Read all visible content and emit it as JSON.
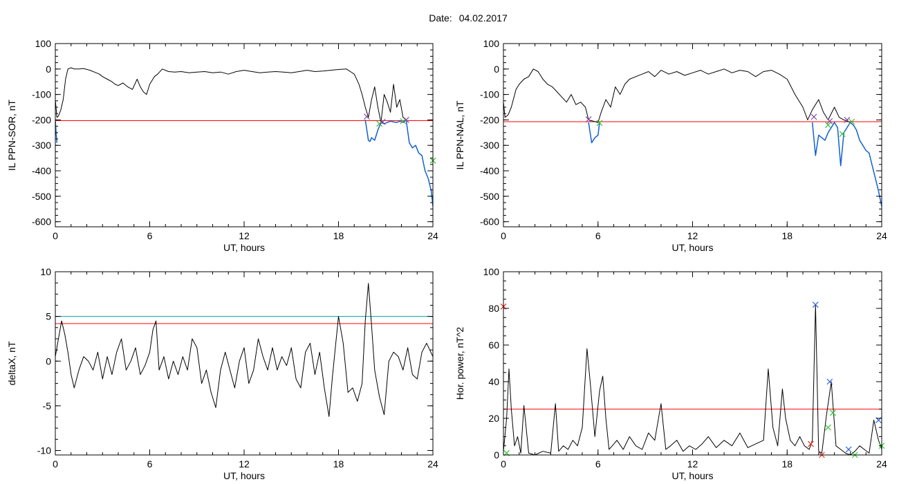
{
  "header": {
    "date_label": "Date:",
    "date_value": "04.02.2017"
  },
  "colors": {
    "trace": "#000000",
    "threshold_red": "#ff0000",
    "threshold_teal": "#00a0a0",
    "segment_blue": "#1060d0",
    "marker_purple": "#8040a0",
    "marker_green": "#30c030",
    "marker_blue": "#3060e0",
    "marker_red": "#e03020"
  },
  "chart_data": [
    {
      "type": "line",
      "xlabel": "UT, hours",
      "ylabel": "IL PPN-SOR, nT",
      "xlim": [
        0,
        24
      ],
      "ylim": [
        -620,
        100
      ],
      "xticks": [
        0,
        6,
        12,
        18,
        24
      ],
      "yticks": [
        100,
        0,
        -100,
        -200,
        -300,
        -400,
        -500,
        -600
      ],
      "threshold": {
        "value": -203,
        "color": "threshold_red"
      },
      "series": [
        {
          "color": "trace",
          "x": [
            0,
            0.1,
            0.2,
            0.35,
            0.5,
            0.65,
            0.8,
            1.0,
            1.2,
            1.5,
            1.8,
            2.2,
            2.6,
            2.8,
            3.0,
            3.3,
            3.6,
            3.8,
            4.0,
            4.3,
            4.6,
            4.9,
            5.2,
            5.4,
            5.6,
            5.8,
            6.0,
            6.3,
            6.5,
            6.8,
            7.2,
            7.6,
            8.0,
            8.5,
            9.0,
            9.5,
            10.0,
            10.5,
            11.0,
            11.5,
            12.0,
            12.5,
            13.0,
            13.5,
            14.0,
            14.5,
            15.0,
            15.5,
            16.0,
            16.5,
            17.0,
            17.5,
            18.0,
            18.5,
            19.0,
            19.3,
            19.5,
            19.7,
            19.9,
            20.1,
            20.3,
            20.5,
            20.7,
            20.9,
            21.1,
            21.3,
            21.5,
            21.7,
            21.9,
            22.1,
            22.3
          ],
          "y": [
            -120,
            -190,
            -185,
            -160,
            -120,
            -40,
            0,
            5,
            0,
            0,
            2,
            -5,
            -15,
            -20,
            -30,
            -40,
            -50,
            -60,
            -65,
            -55,
            -70,
            -80,
            -40,
            -70,
            -90,
            -100,
            -60,
            -30,
            -20,
            0,
            -10,
            -12,
            -10,
            -15,
            -12,
            -10,
            -15,
            -12,
            -20,
            -10,
            -5,
            -10,
            -15,
            -12,
            -10,
            -12,
            -15,
            -10,
            -5,
            -10,
            -8,
            -5,
            -2,
            0,
            -20,
            -60,
            -100,
            -150,
            -190,
            -120,
            -70,
            -150,
            -210,
            -100,
            -130,
            -170,
            -60,
            -150,
            -120,
            -190,
            -200
          ]
        },
        {
          "color": "segment_blue",
          "x": [
            0,
            0.05,
            0.1,
            19.7,
            19.8,
            19.9,
            20.0,
            20.1,
            20.3,
            20.5,
            20.7,
            20.9,
            21.1,
            21.3,
            21.5,
            21.7,
            21.9,
            22.1,
            22.3,
            22.5,
            22.7,
            22.9,
            23.1,
            23.3,
            23.5,
            23.7,
            23.9,
            24.0
          ],
          "y": [
            -200,
            -250,
            -290,
            -200,
            -240,
            -280,
            -285,
            -270,
            -280,
            -240,
            -210,
            -215,
            -210,
            -205,
            -208,
            -210,
            -205,
            -210,
            -200,
            -290,
            -310,
            -300,
            -330,
            -340,
            -400,
            -430,
            -480,
            -540
          ]
        }
      ],
      "markers": [
        {
          "x": 19.8,
          "y": -187,
          "color": "marker_purple"
        },
        {
          "x": 20.6,
          "y": -215,
          "color": "marker_green"
        },
        {
          "x": 20.8,
          "y": -208,
          "color": "marker_purple"
        },
        {
          "x": 22.1,
          "y": -205,
          "color": "marker_green"
        },
        {
          "x": 22.3,
          "y": -200,
          "color": "marker_purple"
        },
        {
          "x": 24.0,
          "y": -360,
          "color": "marker_green"
        }
      ]
    },
    {
      "type": "line",
      "xlabel": "UT, hours",
      "ylabel": "IL PPN-NAL, nT",
      "xlim": [
        0,
        24
      ],
      "ylim": [
        -620,
        100
      ],
      "xticks": [
        0,
        6,
        12,
        18,
        24
      ],
      "yticks": [
        100,
        0,
        -100,
        -200,
        -300,
        -400,
        -500,
        -600
      ],
      "threshold": {
        "value": -207,
        "color": "threshold_red"
      },
      "series": [
        {
          "color": "trace",
          "x": [
            0,
            0.1,
            0.3,
            0.5,
            0.8,
            1.0,
            1.3,
            1.6,
            1.9,
            2.2,
            2.5,
            2.8,
            3.1,
            3.4,
            3.7,
            4.0,
            4.3,
            4.6,
            4.9,
            5.2,
            5.4,
            6.0,
            6.2,
            6.5,
            6.8,
            7.1,
            7.4,
            7.7,
            8.0,
            8.4,
            8.8,
            9.2,
            9.6,
            10.0,
            10.5,
            11.0,
            11.5,
            12.0,
            12.5,
            13.0,
            13.5,
            14.0,
            14.5,
            15.0,
            15.5,
            16.0,
            16.5,
            17.0,
            17.5,
            18.0,
            18.5,
            19.0,
            19.3,
            19.6,
            20.0,
            20.3,
            20.6,
            21.0,
            21.3,
            21.6,
            22.0
          ],
          "y": [
            -130,
            -190,
            -180,
            -150,
            -80,
            -60,
            -40,
            -30,
            0,
            -10,
            -40,
            -60,
            -70,
            -90,
            -110,
            -130,
            -100,
            -140,
            -130,
            -150,
            -200,
            -210,
            -170,
            -120,
            -150,
            -70,
            -100,
            -60,
            -40,
            -30,
            -20,
            -10,
            -30,
            -5,
            -20,
            -10,
            -25,
            -15,
            -5,
            -20,
            -10,
            0,
            -15,
            -5,
            -10,
            -30,
            -10,
            -5,
            -20,
            -40,
            -100,
            -150,
            -200,
            -160,
            -120,
            -170,
            -200,
            -150,
            -190,
            -200,
            -210
          ]
        },
        {
          "color": "segment_blue",
          "x": [
            5.4,
            5.6,
            5.8,
            6.0,
            6.1,
            19.6,
            19.8,
            20.0,
            20.2,
            20.4,
            20.6,
            20.8,
            21.0,
            21.2,
            21.4,
            21.6,
            21.8,
            22.0,
            22.2,
            22.4,
            22.6,
            22.8,
            23.0,
            23.2,
            23.4,
            23.6,
            23.8,
            24.0
          ],
          "y": [
            -210,
            -290,
            -270,
            -260,
            -210,
            -210,
            -340,
            -260,
            -270,
            -280,
            -250,
            -230,
            -210,
            -230,
            -380,
            -250,
            -230,
            -210,
            -220,
            -240,
            -280,
            -300,
            -320,
            -330,
            -380,
            -430,
            -480,
            -540
          ]
        }
      ],
      "markers": [
        {
          "x": 5.4,
          "y": -198,
          "color": "marker_purple"
        },
        {
          "x": 6.1,
          "y": -212,
          "color": "marker_green"
        },
        {
          "x": 19.7,
          "y": -188,
          "color": "marker_purple"
        },
        {
          "x": 20.6,
          "y": -220,
          "color": "marker_green"
        },
        {
          "x": 20.7,
          "y": -205,
          "color": "marker_purple"
        },
        {
          "x": 21.5,
          "y": -255,
          "color": "marker_green"
        },
        {
          "x": 21.8,
          "y": -200,
          "color": "marker_purple"
        },
        {
          "x": 22.1,
          "y": -207,
          "color": "marker_green"
        }
      ]
    },
    {
      "type": "line",
      "xlabel": "UT, hours",
      "ylabel": "deltaX, nT",
      "xlim": [
        0,
        24
      ],
      "ylim": [
        -10.5,
        10
      ],
      "xticks": [
        0,
        6,
        12,
        18,
        24
      ],
      "yticks": [
        10,
        5,
        0,
        -5,
        -10
      ],
      "thresholds": [
        {
          "value": 5.0,
          "color": "threshold_teal"
        },
        {
          "value": 4.2,
          "color": "threshold_red"
        }
      ],
      "series": [
        {
          "color": "trace",
          "x": [
            0,
            0.2,
            0.4,
            0.6,
            0.8,
            1.0,
            1.2,
            1.5,
            1.8,
            2.1,
            2.4,
            2.7,
            3.0,
            3.3,
            3.6,
            3.9,
            4.2,
            4.5,
            4.8,
            5.1,
            5.4,
            5.7,
            6.0,
            6.2,
            6.4,
            6.6,
            6.9,
            7.2,
            7.5,
            7.8,
            8.1,
            8.4,
            8.7,
            9.0,
            9.3,
            9.6,
            9.9,
            10.2,
            10.5,
            10.8,
            11.1,
            11.4,
            11.7,
            12.0,
            12.3,
            12.6,
            12.9,
            13.2,
            13.5,
            13.8,
            14.1,
            14.4,
            14.7,
            15.0,
            15.3,
            15.6,
            15.9,
            16.2,
            16.5,
            16.8,
            17.1,
            17.4,
            17.6,
            17.8,
            18.0,
            18.3,
            18.6,
            18.9,
            19.2,
            19.5,
            19.7,
            19.9,
            20.1,
            20.3,
            20.6,
            20.9,
            21.2,
            21.5,
            21.8,
            22.1,
            22.4,
            22.7,
            23.0,
            23.3,
            23.6,
            24.0
          ],
          "y": [
            0.5,
            2.5,
            4.5,
            3.0,
            1.0,
            -1.5,
            -3.0,
            -1.0,
            0.5,
            0.0,
            -1.0,
            1.0,
            -2.0,
            0.5,
            -1.5,
            1.0,
            2.5,
            -1.0,
            0.0,
            1.5,
            -1.5,
            -0.5,
            1.0,
            3.5,
            4.5,
            -1.0,
            0.5,
            -2.0,
            0.0,
            -1.5,
            0.5,
            -1.0,
            2.5,
            1.5,
            -2.5,
            -1.0,
            -3.5,
            -5.2,
            -1.0,
            1.0,
            -1.0,
            -3.0,
            0.0,
            1.5,
            -2.5,
            -1.0,
            2.5,
            0.5,
            -1.0,
            1.5,
            -1.0,
            0.5,
            -0.5,
            1.5,
            -2.0,
            -3.0,
            1.0,
            2.0,
            -1.5,
            1.0,
            -3.0,
            -6.2,
            -2.0,
            1.5,
            5.0,
            2.0,
            -3.5,
            -3.0,
            -4.5,
            -2.5,
            4.5,
            8.7,
            4.0,
            -1.0,
            -4.0,
            -6.0,
            0.0,
            1.0,
            0.5,
            -1.0,
            1.5,
            -1.5,
            -2.0,
            1.0,
            2.0,
            0.5
          ]
        }
      ]
    },
    {
      "type": "line",
      "xlabel": "UT, hours",
      "ylabel": "Hor. power, nT^2",
      "xlim": [
        0,
        24
      ],
      "ylim": [
        0,
        100
      ],
      "xticks": [
        0,
        6,
        12,
        18,
        24
      ],
      "yticks": [
        100,
        80,
        60,
        40,
        20,
        0
      ],
      "threshold": {
        "value": 25,
        "color": "threshold_red"
      },
      "series": [
        {
          "color": "trace",
          "x": [
            0,
            0.2,
            0.35,
            0.5,
            0.7,
            0.9,
            1.1,
            1.3,
            1.6,
            2.0,
            2.5,
            3.0,
            3.3,
            3.5,
            3.8,
            4.1,
            4.4,
            4.7,
            5.0,
            5.3,
            5.5,
            5.8,
            6.1,
            6.3,
            6.5,
            6.7,
            6.9,
            7.2,
            7.6,
            8.0,
            8.4,
            8.8,
            9.2,
            9.6,
            10.0,
            10.3,
            10.6,
            11.0,
            11.4,
            11.8,
            12.2,
            12.6,
            13.0,
            13.5,
            14.0,
            14.5,
            15.0,
            15.5,
            16.0,
            16.5,
            16.8,
            17.1,
            17.4,
            17.7,
            17.9,
            18.2,
            18.5,
            18.8,
            19.1,
            19.4,
            19.6,
            19.8,
            20.0,
            20.2,
            20.5,
            20.8,
            21.1,
            21.4,
            21.7,
            22.0,
            22.3,
            22.6,
            22.9,
            23.2,
            23.5,
            23.8,
            24.0
          ],
          "y": [
            2,
            20,
            47,
            25,
            5,
            10,
            1,
            27,
            1,
            0,
            2,
            1,
            28,
            2,
            5,
            3,
            8,
            5,
            15,
            58,
            40,
            10,
            35,
            43,
            20,
            3,
            5,
            8,
            3,
            10,
            5,
            3,
            12,
            8,
            28,
            3,
            5,
            8,
            2,
            5,
            3,
            6,
            10,
            4,
            8,
            5,
            12,
            4,
            6,
            8,
            47,
            15,
            5,
            36,
            20,
            8,
            5,
            10,
            5,
            3,
            8,
            82,
            2,
            1,
            22,
            40,
            5,
            3,
            1,
            0,
            2,
            5,
            3,
            1,
            19,
            8,
            3
          ]
        }
      ],
      "markers": [
        {
          "x": 0.0,
          "y": 81,
          "color": "marker_red"
        },
        {
          "x": 0.2,
          "y": 1,
          "color": "marker_green"
        },
        {
          "x": 19.5,
          "y": 6,
          "color": "marker_red"
        },
        {
          "x": 19.8,
          "y": 82,
          "color": "marker_blue"
        },
        {
          "x": 20.2,
          "y": 0,
          "color": "marker_red"
        },
        {
          "x": 20.7,
          "y": 40,
          "color": "marker_blue"
        },
        {
          "x": 20.6,
          "y": 15,
          "color": "marker_green"
        },
        {
          "x": 20.9,
          "y": 23,
          "color": "marker_green"
        },
        {
          "x": 21.9,
          "y": 3,
          "color": "marker_blue"
        },
        {
          "x": 22.3,
          "y": 0,
          "color": "marker_green"
        },
        {
          "x": 23.8,
          "y": 19,
          "color": "marker_blue"
        },
        {
          "x": 24.0,
          "y": 5,
          "color": "marker_green"
        }
      ]
    }
  ]
}
